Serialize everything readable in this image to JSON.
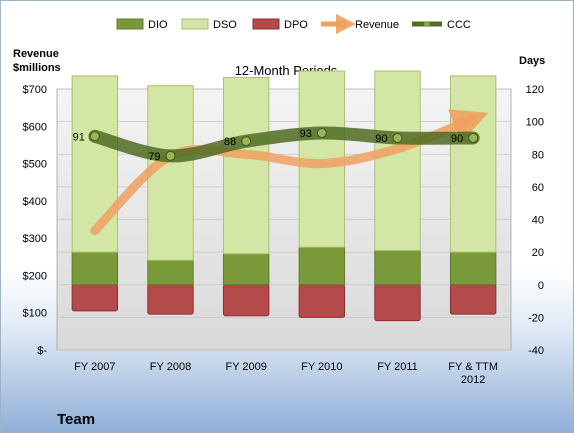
{
  "chart_data": {
    "type": "bar",
    "title": "12-Month Periods",
    "left_axis_label": [
      "Revenue",
      "$millions"
    ],
    "right_axis_label": "Days",
    "footer_label": "Team",
    "categories": [
      [
        "FY 2007"
      ],
      [
        "FY 2008"
      ],
      [
        "FY 2009"
      ],
      [
        "FY 2010"
      ],
      [
        "FY 2011"
      ],
      [
        "FY & TTM",
        "2012"
      ]
    ],
    "left_axis": {
      "min": 0,
      "max": 700,
      "step": 100,
      "tick_labels": [
        "$-",
        "$100",
        "$200",
        "$300",
        "$400",
        "$500",
        "$600",
        "$700"
      ]
    },
    "right_axis": {
      "min": -40,
      "max": 120,
      "step": 20,
      "tick_labels": [
        "-40",
        "-20",
        "0",
        "20",
        "40",
        "60",
        "80",
        "100",
        "120"
      ]
    },
    "series": [
      {
        "name": "DIO",
        "type": "stacked-bar",
        "axis": "right",
        "color": "#7a9a3a",
        "values": [
          20,
          15,
          19,
          23,
          21,
          20
        ]
      },
      {
        "name": "DSO",
        "type": "stacked-bar",
        "axis": "right",
        "color": "#d4e6a6",
        "values": [
          108,
          107,
          108,
          108,
          110,
          108
        ]
      },
      {
        "name": "DPO",
        "type": "negative-bar",
        "axis": "right",
        "color": "#b54a4a",
        "values": [
          -16,
          -18,
          -19,
          -20,
          -22,
          -18
        ]
      },
      {
        "name": "Revenue",
        "type": "line",
        "axis": "left",
        "color": "#f0a060",
        "values": [
          320,
          520,
          525,
          500,
          540,
          620
        ]
      },
      {
        "name": "CCC",
        "type": "line",
        "axis": "right",
        "color": "#4f6b22",
        "values": [
          91,
          79,
          88,
          93,
          90,
          90
        ],
        "data_labels": [
          "91",
          "79",
          "88",
          "93",
          "90",
          "90"
        ]
      }
    ]
  }
}
